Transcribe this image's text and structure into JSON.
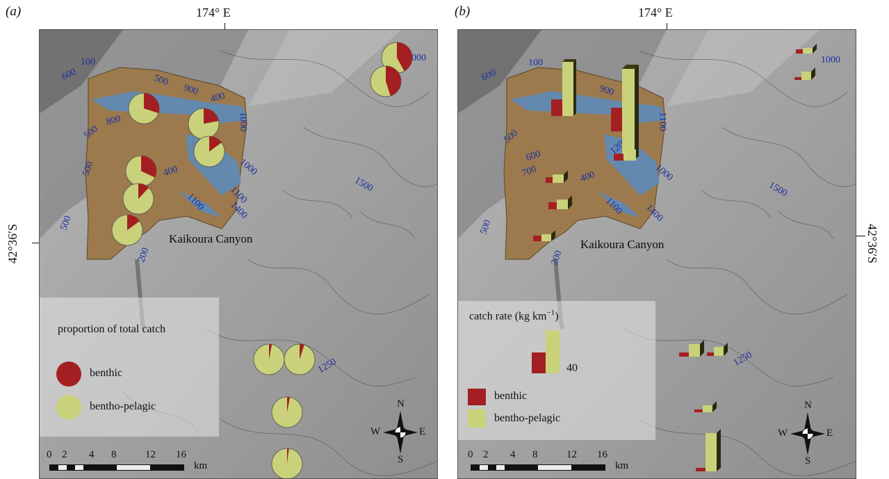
{
  "panels": [
    {
      "label": "(a)",
      "longitude_label": "174° E",
      "latitude_label": "42°36′S",
      "place_name": "Kaikoura Canyon",
      "legend": {
        "title": "proportion of total catch",
        "items": [
          "benthic",
          "bentho-pelagic"
        ]
      },
      "depth_labels": [
        "100",
        "600",
        "500",
        "900",
        "400",
        "800",
        "500",
        "1000",
        "1100",
        "1000",
        "1100",
        "1400",
        "500",
        "400",
        "500",
        "200",
        "1500",
        "1000",
        "1250"
      ],
      "pie_proportions_benthic": [
        0.3,
        0.22,
        0.15,
        0.32,
        0.12,
        0.15,
        0.42,
        0.45,
        0.03,
        0.05,
        0.03,
        0.02,
        0.02
      ]
    },
    {
      "label": "(b)",
      "longitude_label": "174° E",
      "latitude_label": "42°36′S",
      "place_name": "Kaikoura Canyon",
      "legend": {
        "title": "catch rate (kg km",
        "title_sup": "−1",
        "title_end": ")",
        "ref_value": "40",
        "items": [
          "benthic",
          "bentho-pelagic"
        ]
      },
      "depth_labels": [
        "100",
        "600",
        "500",
        "900",
        "1100",
        "1000",
        "1200",
        "1100",
        "1400",
        "400",
        "700",
        "600",
        "500",
        "200",
        "1500",
        "1000",
        "1250"
      ]
    }
  ],
  "scalebar": {
    "ticks": [
      "0",
      "2",
      "4",
      "8",
      "12",
      "16"
    ],
    "unit": "km"
  },
  "compass": {
    "n": "N",
    "s": "S",
    "e": "E",
    "w": "W"
  },
  "colors": {
    "benthic": "#a41f22",
    "bentho_pelagic": "#c9d27a",
    "canyon": "#9c7a4e",
    "deep_sediment": "#5a8cc0",
    "sea": "#9c9c9c",
    "depth_label": "#1b2fa0"
  }
}
